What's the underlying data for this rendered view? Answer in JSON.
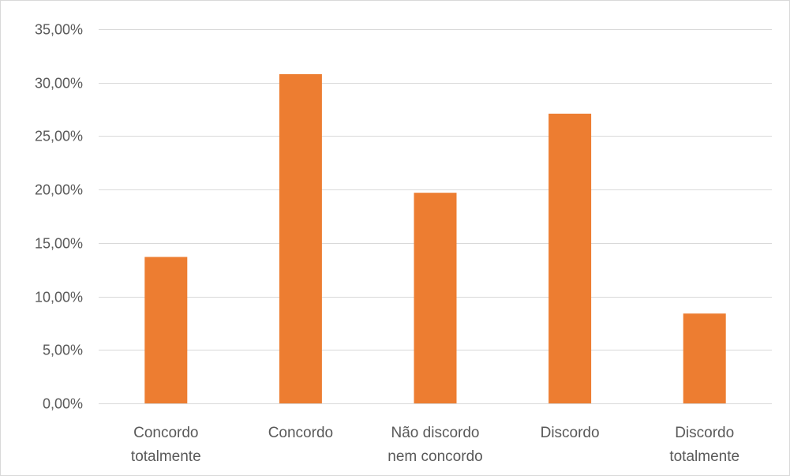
{
  "chart_data": {
    "type": "bar",
    "title": "",
    "xlabel": "",
    "ylabel": "",
    "categories": [
      [
        "Concordo",
        "totalmente"
      ],
      [
        "Concordo"
      ],
      [
        "Não discordo",
        "nem concordo"
      ],
      [
        "Discordo"
      ],
      [
        "Discordo",
        "totalmente"
      ]
    ],
    "values": [
      13.7,
      30.8,
      19.7,
      27.1,
      8.4
    ],
    "ylim": [
      0,
      35
    ],
    "yticks": [
      0,
      5,
      10,
      15,
      20,
      25,
      30,
      35
    ],
    "ytick_labels": [
      "0,00%",
      "5,00%",
      "10,00%",
      "15,00%",
      "20,00%",
      "25,00%",
      "30,00%",
      "35,00%"
    ],
    "grid": true,
    "legend": "none",
    "bar_color": "#ED7D31",
    "gridline_color": "#d9d9d9",
    "text_color": "#595959"
  }
}
